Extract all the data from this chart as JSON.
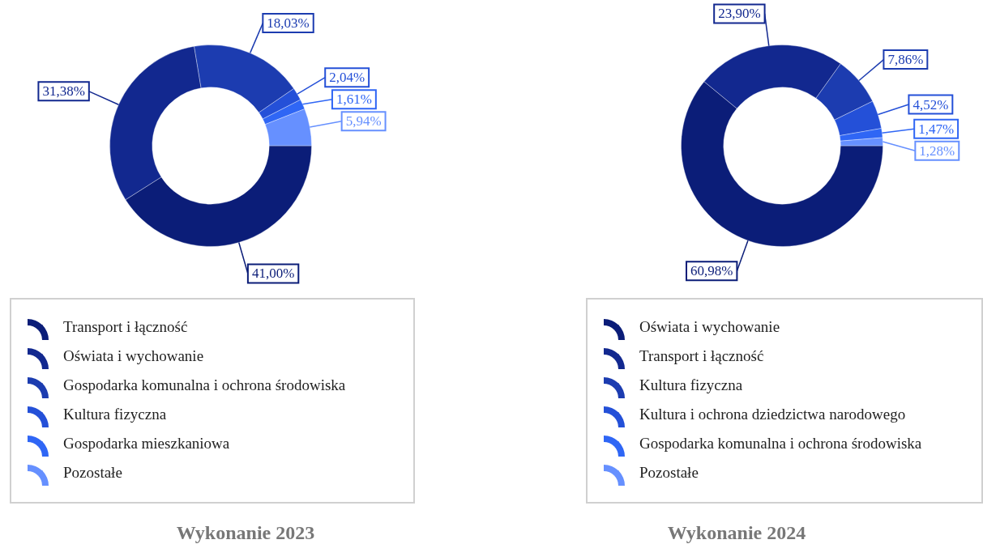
{
  "chart_data": [
    {
      "type": "donut",
      "title": "Wykonanie 2023",
      "legend": "bottom",
      "categories": [
        "Transport i łączność",
        "Oświata i wychowanie",
        "Gospodarka komunalna i ochrona środowiska",
        "Kultura fizyczna",
        "Gospodarka mieszkaniowa",
        "Pozostałe"
      ],
      "values": [
        41.0,
        31.38,
        18.03,
        2.04,
        1.61,
        5.94
      ],
      "value_labels": [
        "41,00%",
        "31,38%",
        "18,03%",
        "2,04%",
        "1,61%",
        "5,94%"
      ],
      "colors": [
        "#0b1d78",
        "#12288f",
        "#1c3cb0",
        "#2450d8",
        "#2f66f5",
        "#6690ff"
      ]
    },
    {
      "type": "donut",
      "title": "Wykonanie 2024",
      "legend": "bottom",
      "categories": [
        "Oświata i wychowanie",
        "Transport i łączność",
        "Kultura fizyczna",
        "Kultura i ochrona dziedzictwa narodowego",
        "Gospodarka komunalna i ochrona środowiska",
        "Pozostałe"
      ],
      "values": [
        60.98,
        23.9,
        7.86,
        4.52,
        1.47,
        1.28
      ],
      "value_labels": [
        "60,98%",
        "23,90%",
        "7,86%",
        "4,52%",
        "1,47%",
        "1,28%"
      ],
      "colors": [
        "#0b1d78",
        "#12288f",
        "#1c3cb0",
        "#2450d8",
        "#2f66f5",
        "#6690ff"
      ]
    }
  ]
}
